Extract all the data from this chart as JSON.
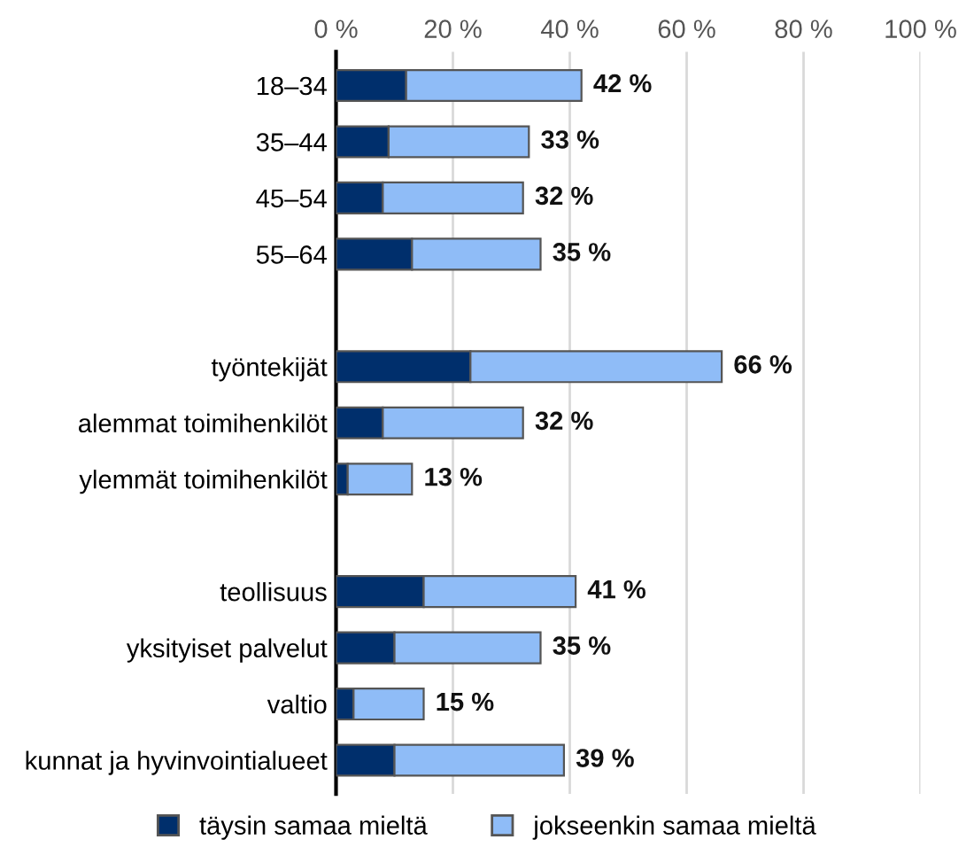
{
  "chart_data": {
    "type": "bar",
    "orientation": "horizontal",
    "stacked": true,
    "categories": [
      "18–34",
      "35–44",
      "45–54",
      "55–64",
      null,
      "työntekijät",
      "alemmat toimihenkilöt",
      "ylemmät toimihenkilöt",
      null,
      "teollisuus",
      "yksityiset palvelut",
      "valtio",
      "kunnat ja hyvinvointialueet"
    ],
    "series": [
      {
        "name": "täysin samaa mieltä",
        "color": "#002f6c",
        "values": [
          12,
          9,
          8,
          13,
          null,
          23,
          8,
          2,
          null,
          15,
          10,
          3,
          10
        ]
      },
      {
        "name": "jokseenkin samaa mieltä",
        "color": "#8fbcf7",
        "values": [
          30,
          24,
          24,
          22,
          null,
          43,
          24,
          11,
          null,
          26,
          25,
          12,
          29
        ]
      }
    ],
    "totals": [
      "42 %",
      "33 %",
      "32 %",
      "35 %",
      null,
      "66 %",
      "32 %",
      "13 %",
      null,
      "41 %",
      "35 %",
      "15 %",
      "39 %"
    ],
    "xlim": [
      0,
      100
    ],
    "xticks": [
      {
        "value": 0,
        "label": "0 %"
      },
      {
        "value": 20,
        "label": "20 %"
      },
      {
        "value": 40,
        "label": "40 %"
      },
      {
        "value": 60,
        "label": "60 %"
      },
      {
        "value": 80,
        "label": "80 %"
      },
      {
        "value": 100,
        "label": "100 %"
      }
    ],
    "grid": "x",
    "legend": "bottom"
  }
}
